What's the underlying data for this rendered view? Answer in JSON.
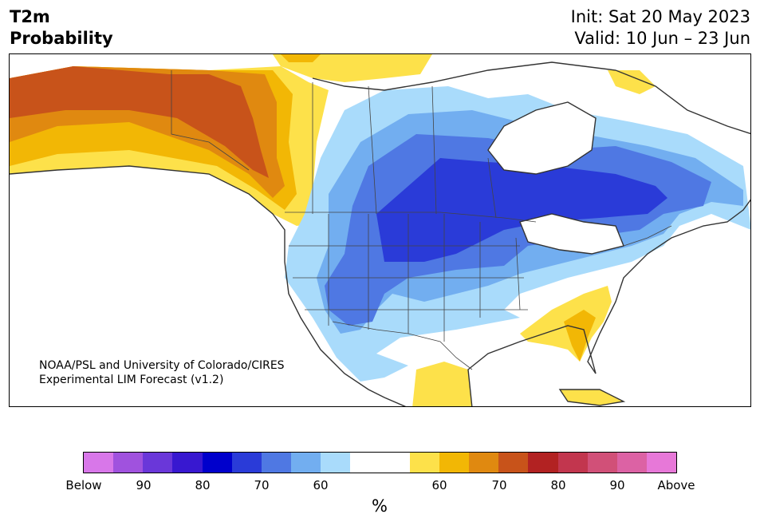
{
  "header": {
    "variable": "T2m",
    "product": "Probability",
    "init": "Init: Sat 20 May 2023",
    "valid": "Valid: 10 Jun – 23 Jun"
  },
  "map": {
    "region": "North America",
    "credit_line1": "NOAA/PSL and University of Colorado/CIRES",
    "credit_line2": "Experimental LIM Forecast (v1.2)",
    "colors": {
      "above_50": "#fde14a",
      "above_60": "#f2b705",
      "above_70": "#e08910",
      "above_80": "#c8531a",
      "below_50": "#a9dbfb",
      "below_60": "#72aef0",
      "below_70": "#4f78e3",
      "below_80": "#2a3bd8",
      "coast": "#333333",
      "border": "#444444"
    }
  },
  "colorbar": {
    "unit": "%",
    "colors": [
      "#d877e9",
      "#a052de",
      "#6a37d9",
      "#3818d0",
      "#0000cc",
      "#2a3bd8",
      "#4f78e3",
      "#72aef0",
      "#a9dbfb",
      "#ffffff",
      "#ffffff",
      "#fde14a",
      "#f2b705",
      "#e08910",
      "#c8531a",
      "#b22222",
      "#c2364e",
      "#d15078",
      "#dc62a4",
      "#e778d8"
    ],
    "ticks": [
      "Below",
      "90",
      "80",
      "70",
      "60",
      "60",
      "70",
      "80",
      "90",
      "Above"
    ]
  }
}
